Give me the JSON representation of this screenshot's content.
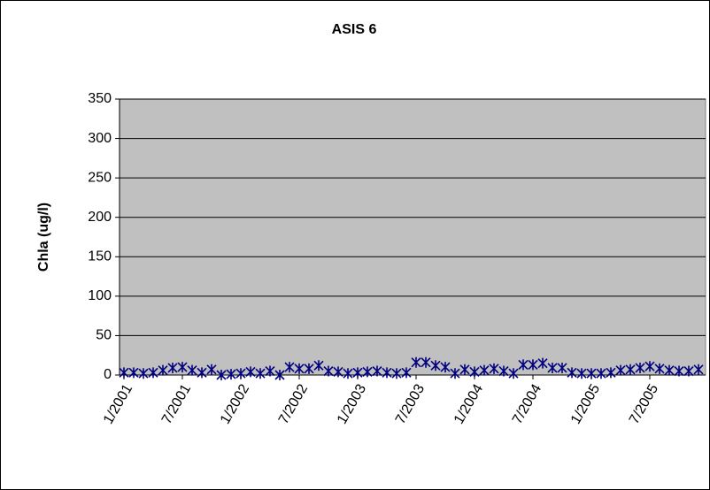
{
  "chart_data": {
    "type": "scatter",
    "title": "ASIS 6",
    "y_label": "Chla (ug/l)",
    "categories": [
      "1/2001",
      null,
      null,
      null,
      null,
      null,
      "7/2001",
      null,
      null,
      null,
      null,
      null,
      "1/2002",
      null,
      null,
      null,
      null,
      null,
      "7/2002",
      null,
      null,
      null,
      null,
      null,
      "1/2003",
      null,
      null,
      null,
      null,
      null,
      "7/2003",
      null,
      null,
      null,
      null,
      null,
      "1/2004",
      null,
      null,
      null,
      null,
      null,
      "7/2004",
      null,
      null,
      null,
      null,
      null,
      "1/2005",
      null,
      null,
      null,
      null,
      null,
      "7/2005",
      null,
      null,
      null,
      null,
      null
    ],
    "values": [
      3,
      3,
      2,
      3,
      6,
      9,
      10,
      6,
      3,
      7,
      0,
      1,
      2,
      4,
      2,
      5,
      0,
      10,
      8,
      8,
      12,
      5,
      4,
      2,
      3,
      4,
      5,
      3,
      2,
      3,
      16,
      16,
      12,
      10,
      2,
      7,
      4,
      6,
      8,
      5,
      2,
      13,
      13,
      15,
      9,
      9,
      3,
      2,
      2,
      2,
      3,
      6,
      7,
      9,
      11,
      8,
      6,
      5,
      5,
      7
    ],
    "color": "#000080",
    "ylim": [
      0,
      350
    ],
    "yticks": [
      0,
      50,
      100,
      150,
      200,
      250,
      300,
      350
    ],
    "grid": true,
    "plot_background": "#c0c0c0"
  }
}
